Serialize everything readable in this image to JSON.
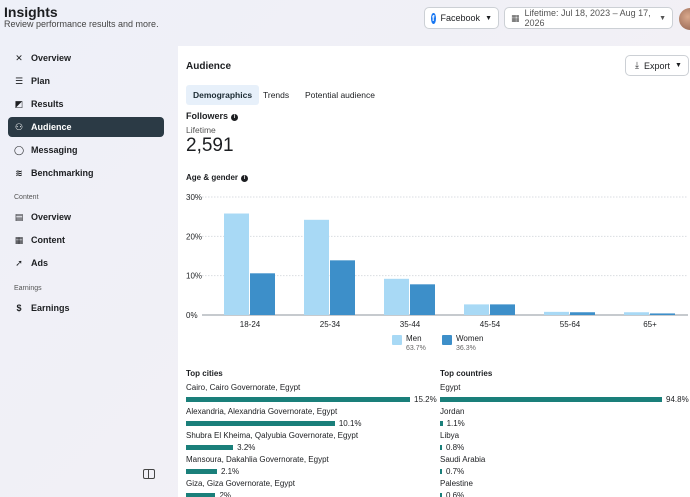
{
  "header": {
    "title": "Insights",
    "subtitle": "Review performance results and more.",
    "platform_label": "Facebook",
    "date_range": "Lifetime: Jul 18, 2023 – Aug 17, 2026"
  },
  "sidebar": {
    "items": [
      {
        "label": "Overview",
        "icon": "overview-icon"
      },
      {
        "label": "Plan",
        "icon": "plan-icon"
      },
      {
        "label": "Results",
        "icon": "results-icon"
      },
      {
        "label": "Audience",
        "icon": "audience-icon",
        "active": true
      },
      {
        "label": "Messaging",
        "icon": "messaging-icon"
      },
      {
        "label": "Benchmarking",
        "icon": "benchmarking-icon"
      }
    ],
    "content_label": "Content",
    "content_items": [
      {
        "label": "Overview",
        "icon": "overview-icon"
      },
      {
        "label": "Content",
        "icon": "content-icon"
      },
      {
        "label": "Ads",
        "icon": "ads-icon"
      }
    ],
    "earnings_label": "Earnings",
    "earnings_items": [
      {
        "label": "Earnings",
        "icon": "dollar-icon"
      }
    ]
  },
  "main": {
    "title": "Audience",
    "export_label": "Export",
    "tabs": [
      {
        "label": "Demographics",
        "active": true
      },
      {
        "label": "Trends"
      },
      {
        "label": "Potential audience"
      }
    ],
    "followers_label": "Followers",
    "followers_period": "Lifetime",
    "followers_count": "2,591",
    "age_gender_label": "Age & gender",
    "legend": {
      "men_label": "Men",
      "men_pct": "63.7%",
      "women_label": "Women",
      "women_pct": "36.3%"
    },
    "top_cities_label": "Top cities",
    "top_cities": [
      {
        "name": "Cairo, Cairo Governorate, Egypt",
        "pct": "15.2%",
        "value": 15.2
      },
      {
        "name": "Alexandria, Alexandria Governorate, Egypt",
        "pct": "10.1%",
        "value": 10.1
      },
      {
        "name": "Shubra El Kheima, Qalyubia Governorate, Egypt",
        "pct": "3.2%",
        "value": 3.2
      },
      {
        "name": "Mansoura, Dakahlia Governorate, Egypt",
        "pct": "2.1%",
        "value": 2.1
      },
      {
        "name": "Giza, Giza Governorate, Egypt",
        "pct": "2%",
        "value": 2.0
      }
    ],
    "top_countries_label": "Top countries",
    "top_countries": [
      {
        "name": "Egypt",
        "pct": "94.8%",
        "value": 94.8
      },
      {
        "name": "Jordan",
        "pct": "1.1%",
        "value": 1.1
      },
      {
        "name": "Libya",
        "pct": "0.8%",
        "value": 0.8
      },
      {
        "name": "Saudi Arabia",
        "pct": "0.7%",
        "value": 0.7
      },
      {
        "name": "Palestine",
        "pct": "0.6%",
        "value": 0.6
      }
    ]
  },
  "colors": {
    "men": "#a8d9f5",
    "women": "#3d8fc9",
    "bar": "#1a7f7a",
    "active_nav": "#2b3a45"
  },
  "chart_data": {
    "type": "bar",
    "categories": [
      "18-24",
      "25-34",
      "35-44",
      "45-54",
      "55-64",
      "65+"
    ],
    "series": [
      {
        "name": "Men",
        "values": [
          25.8,
          24.2,
          9.2,
          2.7,
          0.8,
          0.7
        ]
      },
      {
        "name": "Women",
        "values": [
          10.6,
          13.9,
          7.8,
          2.7,
          0.7,
          0.4
        ]
      }
    ],
    "y_ticks": [
      "0%",
      "10%",
      "20%",
      "30%"
    ],
    "ylim": [
      0,
      30
    ],
    "grid": true,
    "legend": "bottom"
  }
}
